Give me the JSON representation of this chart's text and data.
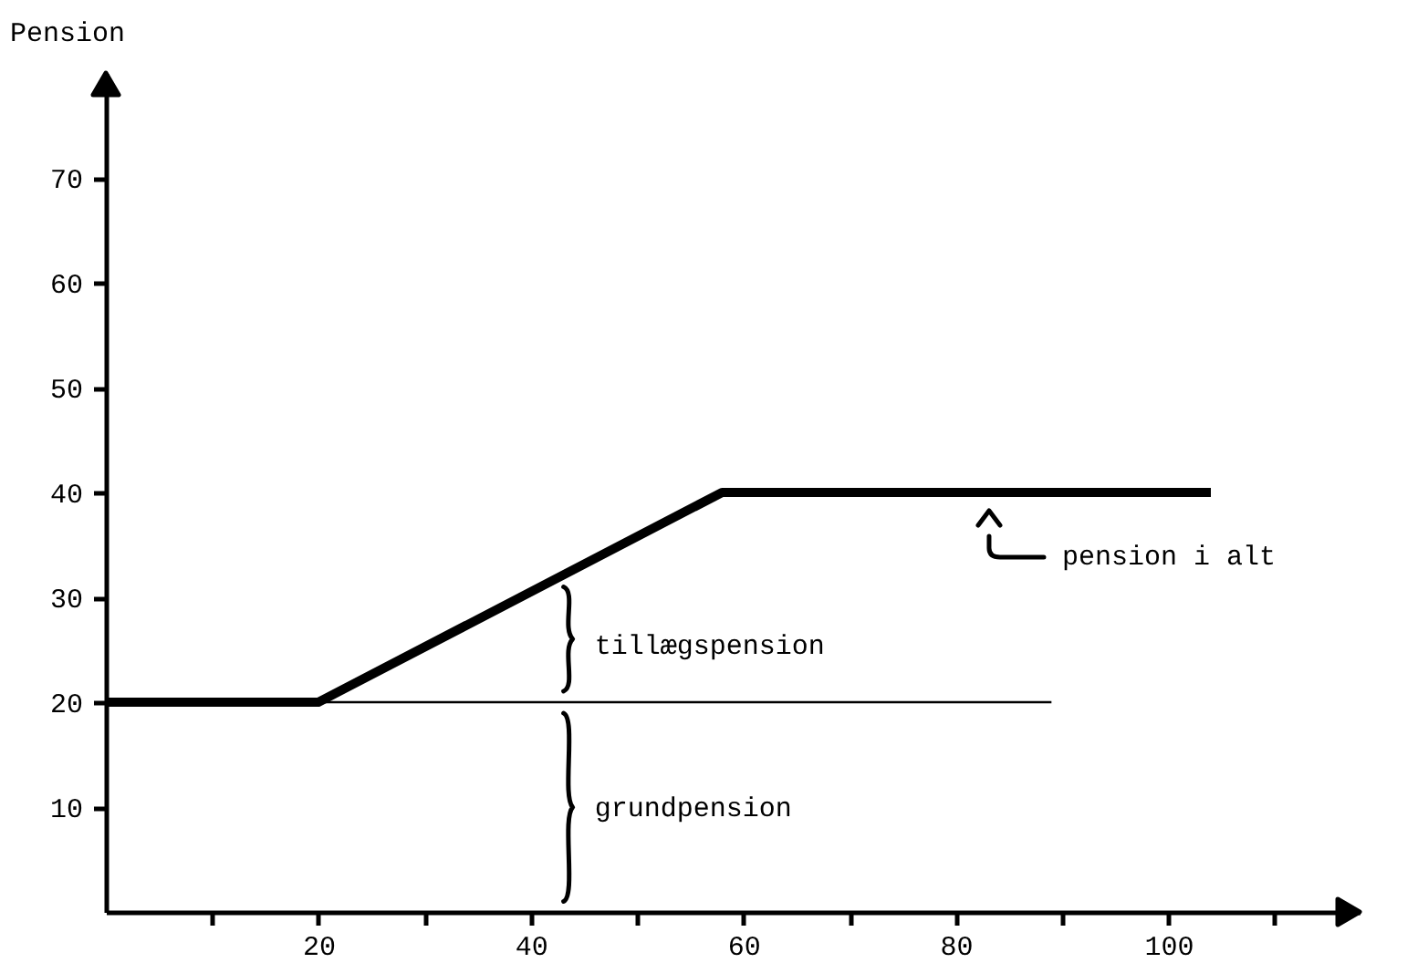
{
  "chart_data": {
    "type": "line",
    "ylabel": "Pension",
    "xlim": [
      0,
      118
    ],
    "ylim": [
      0,
      80
    ],
    "xticks": [
      {
        "value": 10,
        "label": null
      },
      20,
      {
        "value": 30,
        "label": null
      },
      40,
      {
        "value": 50,
        "label": null
      },
      60,
      {
        "value": 70,
        "label": null
      },
      80,
      {
        "value": 90,
        "label": null
      },
      100,
      {
        "value": 110,
        "label": null
      }
    ],
    "yticks": [
      10,
      20,
      30,
      40,
      50,
      60,
      70
    ],
    "series": [
      {
        "color": "#000000",
        "x": [
          0,
          20,
          58,
          104
        ],
        "values": [
          20,
          20,
          40,
          40
        ]
      },
      {
        "color": "#000000",
        "x": [
          20,
          89
        ],
        "values": [
          20,
          20
        ]
      }
    ],
    "annotations": [
      "pension i alt",
      "tillægspension",
      "grundpension"
    ],
    "grid": false,
    "marker": "none",
    "line_style": "solid"
  }
}
